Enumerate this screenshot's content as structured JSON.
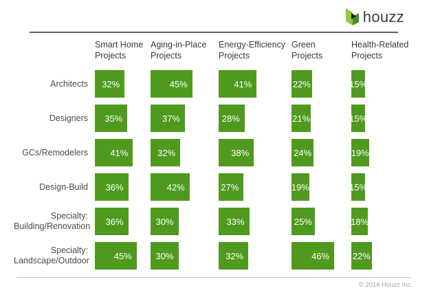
{
  "header": {
    "logo": {
      "brand": "houzz"
    }
  },
  "footer": {
    "copyright": "© 2016 Houzz Inc."
  },
  "colors": {
    "bar": "#4f9a1e",
    "bar_value_text": "#ffffff",
    "logo_green_light": "#98c63d",
    "logo_green_dark": "#4a8f23",
    "logo_black": "#1a1a1a",
    "logo_text": "#3b3b3b",
    "header_text": "#3a3a3a",
    "row_label_text": "#4b4b4b",
    "rule_top": "#5f5f5f",
    "rule_bottom": "#c6c6c6",
    "footer_text": "#a3a3a3"
  },
  "chart_data": {
    "type": "bar",
    "orientation": "horizontal",
    "unit": "%",
    "title": "",
    "legend": "none",
    "grid": false,
    "value_range": [
      0,
      50
    ],
    "categories": [
      "Smart Home Projects",
      "Aging-in-Place Projects",
      "Energy-Efficiency Projects",
      "Green Projects",
      "Health-Related Projects"
    ],
    "category_lines": [
      [
        "Smart Home",
        "Projects"
      ],
      [
        "Aging-in-Place",
        "Projects"
      ],
      [
        "Energy-Efficiency",
        "Projects"
      ],
      [
        "Green",
        "Projects"
      ],
      [
        "Health-Related",
        "Projects"
      ]
    ],
    "rows": [
      {
        "label": "Architects",
        "label_lines": [
          "Architects"
        ],
        "values": [
          32,
          45,
          41,
          22,
          15
        ]
      },
      {
        "label": "Designers",
        "label_lines": [
          "Designers"
        ],
        "values": [
          35,
          37,
          28,
          21,
          15
        ]
      },
      {
        "label": "GCs/Remodelers",
        "label_lines": [
          "GCs/Remodelers"
        ],
        "values": [
          41,
          32,
          38,
          24,
          19
        ]
      },
      {
        "label": "Design-Build",
        "label_lines": [
          "Design-Build"
        ],
        "values": [
          36,
          42,
          27,
          19,
          15
        ]
      },
      {
        "label": "Specialty: Building/Renovation",
        "label_lines": [
          "Specialty:",
          "Building/Renovation"
        ],
        "values": [
          36,
          30,
          33,
          25,
          18
        ]
      },
      {
        "label": "Specialty: Landscape/Outdoor",
        "label_lines": [
          "Specialty:",
          "Landscape/Outdoor"
        ],
        "values": [
          45,
          30,
          32,
          46,
          22
        ]
      }
    ]
  }
}
